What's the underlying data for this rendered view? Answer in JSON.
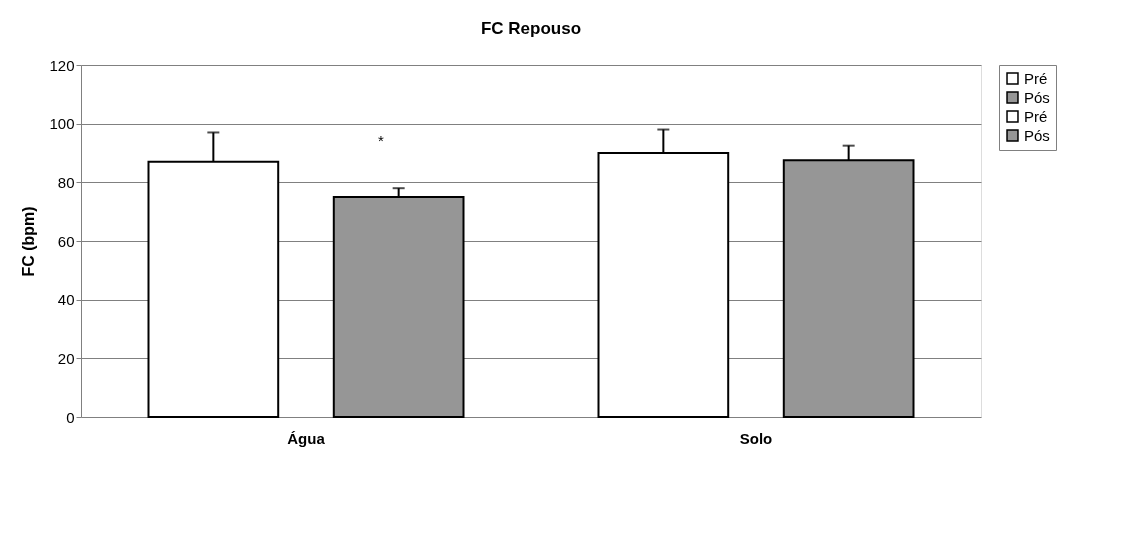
{
  "chart_data": {
    "type": "bar",
    "title": "FC Repouso",
    "ylabel": "FC (bpm)",
    "categories": [
      "Água",
      "Solo"
    ],
    "series": [
      {
        "name": "Pré",
        "color": "#ffffff",
        "values": [
          87,
          null
        ],
        "errors": [
          [
            87,
            97
          ],
          null
        ]
      },
      {
        "name": "Pós",
        "color": "#969696",
        "values": [
          75,
          null
        ],
        "errors": [
          [
            75,
            78
          ],
          null
        ]
      },
      {
        "name": "Pré",
        "color": "#ffffff",
        "values": [
          null,
          90
        ],
        "errors": [
          null,
          [
            90,
            98
          ]
        ]
      },
      {
        "name": "Pós",
        "color": "#969696",
        "values": [
          null,
          87.5
        ],
        "errors": [
          null,
          [
            87.5,
            92.5
          ]
        ]
      }
    ],
    "ylim": [
      0,
      120
    ],
    "yticks": [
      0,
      20,
      40,
      60,
      80,
      100,
      120
    ],
    "grid": "y",
    "legend": "right",
    "annotations": [
      "*"
    ]
  }
}
